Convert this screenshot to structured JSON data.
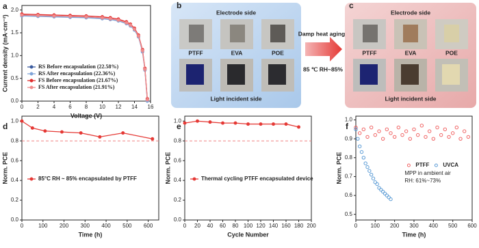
{
  "chart_data": [
    {
      "type": "line",
      "label": "a",
      "xlabel": "Voltage (V)",
      "ylabel": "Current density (mA·cm⁻²)",
      "x": [
        0,
        2,
        4,
        6,
        8,
        10,
        11,
        12,
        13,
        13.5,
        14,
        14.5,
        15,
        15.3,
        15.6
      ],
      "series": [
        {
          "name": "RS Before encapsulation (22.58%)",
          "color": "#3b5b9e",
          "values": [
            1.88,
            1.87,
            1.86,
            1.85,
            1.84,
            1.82,
            1.8,
            1.77,
            1.71,
            1.66,
            1.57,
            1.42,
            1.1,
            0.7,
            0.02
          ]
        },
        {
          "name": "RS After encapsulation (22.36%)",
          "color": "#7fa4d8",
          "values": [
            1.87,
            1.86,
            1.85,
            1.84,
            1.83,
            1.81,
            1.79,
            1.76,
            1.7,
            1.65,
            1.56,
            1.41,
            1.08,
            0.68,
            0
          ]
        },
        {
          "name": "FS Before encapsulation (21.67%)",
          "color": "#e02b2b",
          "values": [
            1.91,
            1.9,
            1.89,
            1.88,
            1.87,
            1.85,
            1.83,
            1.8,
            1.74,
            1.69,
            1.6,
            1.45,
            1.13,
            0.72,
            0.05
          ]
        },
        {
          "name": "FS After encapsulation (21.91%)",
          "color": "#f08a8a",
          "values": [
            1.89,
            1.88,
            1.87,
            1.86,
            1.85,
            1.83,
            1.81,
            1.78,
            1.72,
            1.67,
            1.58,
            1.43,
            1.11,
            0.7,
            0.03
          ]
        }
      ],
      "xlim": [
        0,
        16
      ],
      "xticks": [
        0,
        2,
        4,
        6,
        8,
        10,
        12,
        14,
        16
      ],
      "ylim": [
        0,
        2.1
      ],
      "yticks": [
        {
          "value": 0,
          "label": "0.0"
        },
        0.5,
        {
          "value": 1,
          "label": "1.0"
        },
        1.5,
        {
          "value": 2,
          "label": "2.0"
        }
      ],
      "legend": "lower left"
    },
    {
      "type": "line",
      "label": "d",
      "xlabel": "Time (h)",
      "ylabel": "Norm. PCE",
      "x": [
        0,
        50,
        110,
        190,
        280,
        370,
        480,
        620
      ],
      "series": [
        {
          "name": "85°C RH ~ 85% encapsulated by PTFF",
          "color": "#e53935",
          "values": [
            1,
            0.93,
            0.9,
            0.89,
            0.88,
            0.84,
            0.88,
            0.82
          ]
        }
      ],
      "ref_line": {
        "value": 0.8,
        "color": "#f08080"
      },
      "xlim": [
        0,
        650
      ],
      "xticks": [
        0,
        100,
        200,
        300,
        400,
        500,
        600
      ],
      "ylim": [
        0,
        1.05
      ],
      "yticks": [
        {
          "value": 0,
          "label": "0.0"
        },
        0.2,
        0.4,
        0.6,
        0.8,
        {
          "value": 1,
          "label": "1.0"
        }
      ],
      "legend": "lower left"
    },
    {
      "type": "line",
      "label": "e",
      "xlabel": "Cycle Number",
      "ylabel": "Norm. PCE",
      "x": [
        0,
        20,
        40,
        60,
        80,
        100,
        120,
        140,
        160,
        180
      ],
      "series": [
        {
          "name": "Thermal cycling  PTFF encapsulated device",
          "color": "#e53935",
          "values": [
            0.98,
            1,
            0.99,
            0.98,
            0.98,
            0.97,
            0.97,
            0.97,
            0.97,
            0.94
          ]
        }
      ],
      "ref_line": {
        "value": 0.8,
        "color": "#f08080"
      },
      "xlim": [
        0,
        200
      ],
      "xticks": [
        0,
        20,
        40,
        60,
        80,
        100,
        120,
        140,
        160,
        180,
        200
      ],
      "ylim": [
        0,
        1.05
      ],
      "yticks": [
        {
          "value": 0,
          "label": "0.0"
        },
        0.2,
        0.4,
        0.6,
        0.8,
        {
          "value": 1,
          "label": "1.0"
        }
      ],
      "legend": "lower left"
    },
    {
      "type": "scatter",
      "label": "f",
      "xlabel": "Time (h)",
      "ylabel": "Norm. PCE",
      "series": [
        {
          "name": "PTFF",
          "color": "#f06262",
          "x": [
            0,
            20,
            40,
            60,
            80,
            100,
            120,
            140,
            160,
            180,
            200,
            220,
            240,
            260,
            280,
            300,
            320,
            340,
            360,
            380,
            400,
            420,
            440,
            460,
            480,
            500,
            520,
            540,
            560,
            580
          ],
          "values": [
            0.96,
            0.93,
            0.95,
            0.91,
            0.96,
            0.92,
            0.94,
            0.9,
            0.95,
            0.93,
            0.91,
            0.96,
            0.92,
            0.94,
            0.9,
            0.95,
            0.92,
            0.97,
            0.91,
            0.94,
            0.9,
            0.96,
            0.92,
            0.95,
            0.91,
            0.93,
            0.96,
            0.9,
            0.94,
            0.91
          ]
        },
        {
          "name": "UVCA",
          "color": "#5b9bd5",
          "x": [
            0,
            10,
            20,
            30,
            40,
            50,
            60,
            70,
            80,
            90,
            100,
            110,
            120,
            130,
            140,
            150,
            160,
            170,
            180
          ],
          "values": [
            0.95,
            0.9,
            0.86,
            0.83,
            0.8,
            0.77,
            0.75,
            0.73,
            0.71,
            0.69,
            0.67,
            0.66,
            0.64,
            0.63,
            0.62,
            0.61,
            0.6,
            0.59,
            0.58
          ]
        }
      ],
      "annotations": [
        "MPP in ambient air",
        "RH: 61%~73%"
      ],
      "xlim": [
        0,
        600
      ],
      "xticks": [
        0,
        100,
        200,
        300,
        400,
        500,
        600
      ],
      "ylim": [
        0.47,
        1.02
      ],
      "yticks": [
        0.5,
        0.6,
        0.7,
        0.8,
        0.9,
        {
          "value": 1,
          "label": "1.0"
        }
      ],
      "legend": "center right"
    }
  ],
  "photo_panels": {
    "b": {
      "label": "b",
      "top": "Electrode side",
      "bottom": "Light incident side",
      "films": [
        "PTFF",
        "EVA",
        "POE"
      ]
    },
    "arrow": {
      "text": "Damp heat aging",
      "condition": "85 ℃ RH~85%"
    },
    "c": {
      "label": "c",
      "top": "Electrode side",
      "bottom": "Light incident side",
      "films": [
        "PTFF",
        "EVA",
        "POE"
      ]
    }
  }
}
